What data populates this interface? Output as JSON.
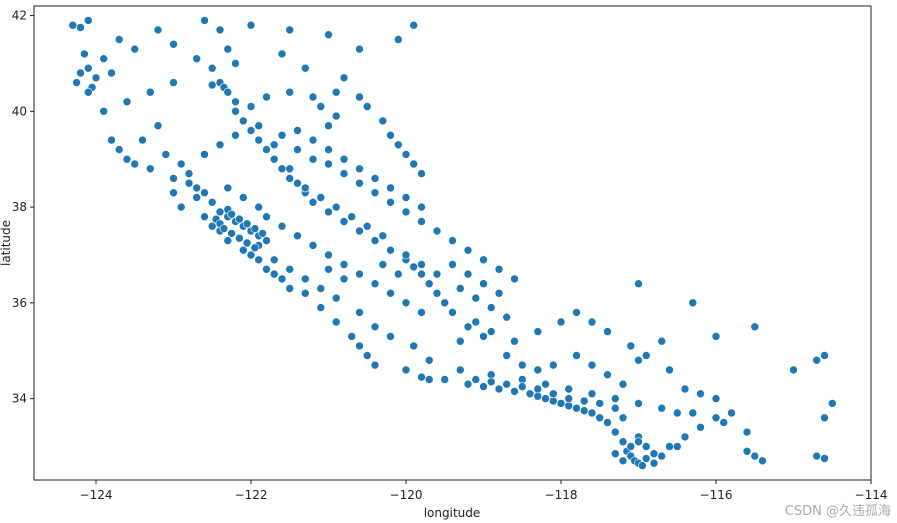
{
  "chart_data": {
    "type": "scatter",
    "title": "",
    "xlabel": "longitude",
    "ylabel": "latitude",
    "xlim": [
      -124.8,
      -114.0
    ],
    "ylim": [
      32.3,
      42.2
    ],
    "xticks": [
      -124,
      -122,
      -120,
      -118,
      -116,
      -114
    ],
    "yticks": [
      34,
      36,
      38,
      40,
      42
    ],
    "xtick_labels": [
      "−124",
      "−122",
      "−120",
      "−118",
      "−116",
      "−114"
    ],
    "ytick_labels": [
      "34",
      "36",
      "38",
      "40",
      "42"
    ],
    "grid": false,
    "legend": "none",
    "marker_color": "#1f77b4",
    "marker_edge": "#ffffff",
    "points": [
      [
        -124.3,
        41.8
      ],
      [
        -124.2,
        41.75
      ],
      [
        -124.1,
        41.9
      ],
      [
        -124.15,
        41.2
      ],
      [
        -124.2,
        40.8
      ],
      [
        -124.25,
        40.6
      ],
      [
        -124.1,
        40.9
      ],
      [
        -124.0,
        40.7
      ],
      [
        -124.05,
        40.5
      ],
      [
        -123.8,
        40.8
      ],
      [
        -124.1,
        40.4
      ],
      [
        -123.9,
        41.1
      ],
      [
        -123.7,
        41.5
      ],
      [
        -123.5,
        41.3
      ],
      [
        -123.2,
        41.7
      ],
      [
        -123.0,
        41.4
      ],
      [
        -122.6,
        41.9
      ],
      [
        -122.4,
        41.7
      ],
      [
        -122.3,
        41.3
      ],
      [
        -122.2,
        41.0
      ],
      [
        -122.4,
        40.6
      ],
      [
        -122.35,
        40.5
      ],
      [
        -122.3,
        40.4
      ],
      [
        -122.5,
        40.55
      ],
      [
        -122.2,
        40.2
      ],
      [
        -122.0,
        40.1
      ],
      [
        -121.8,
        40.3
      ],
      [
        -121.5,
        40.4
      ],
      [
        -121.2,
        40.3
      ],
      [
        -120.9,
        40.4
      ],
      [
        -120.6,
        40.3
      ],
      [
        -120.5,
        40.1
      ],
      [
        -120.3,
        39.8
      ],
      [
        -120.2,
        39.5
      ],
      [
        -120.1,
        39.3
      ],
      [
        -120.0,
        39.1
      ],
      [
        -119.9,
        38.9
      ],
      [
        -119.8,
        38.7
      ],
      [
        -119.9,
        41.8
      ],
      [
        -120.1,
        41.5
      ],
      [
        -120.6,
        41.3
      ],
      [
        -121.0,
        41.6
      ],
      [
        -121.5,
        41.7
      ],
      [
        -122.0,
        41.8
      ],
      [
        -121.6,
        41.2
      ],
      [
        -121.3,
        40.9
      ],
      [
        -120.8,
        40.7
      ],
      [
        -123.8,
        39.4
      ],
      [
        -123.7,
        39.2
      ],
      [
        -123.6,
        39.0
      ],
      [
        -123.5,
        38.9
      ],
      [
        -123.3,
        38.8
      ],
      [
        -123.0,
        38.6
      ],
      [
        -122.8,
        38.5
      ],
      [
        -122.7,
        38.4
      ],
      [
        -122.6,
        38.3
      ],
      [
        -122.5,
        38.1
      ],
      [
        -122.4,
        37.9
      ],
      [
        -122.3,
        37.8
      ],
      [
        -122.2,
        37.7
      ],
      [
        -122.1,
        37.6
      ],
      [
        -122.0,
        37.5
      ],
      [
        -121.9,
        37.4
      ],
      [
        -121.8,
        37.3
      ],
      [
        -121.9,
        37.2
      ],
      [
        -122.0,
        37.0
      ],
      [
        -121.9,
        36.9
      ],
      [
        -121.8,
        36.7
      ],
      [
        -121.7,
        36.6
      ],
      [
        -121.6,
        36.5
      ],
      [
        -121.5,
        36.3
      ],
      [
        -121.3,
        36.2
      ],
      [
        -121.1,
        35.9
      ],
      [
        -120.9,
        35.6
      ],
      [
        -120.7,
        35.3
      ],
      [
        -120.6,
        35.1
      ],
      [
        -120.5,
        34.9
      ],
      [
        -120.4,
        34.7
      ],
      [
        -120.0,
        34.6
      ],
      [
        -119.8,
        34.45
      ],
      [
        -119.7,
        34.4
      ],
      [
        -119.5,
        34.4
      ],
      [
        -119.2,
        34.3
      ],
      [
        -119.0,
        34.25
      ],
      [
        -118.8,
        34.2
      ],
      [
        -118.6,
        34.15
      ],
      [
        -118.4,
        34.1
      ],
      [
        -118.3,
        34.05
      ],
      [
        -118.2,
        34.0
      ],
      [
        -118.1,
        33.95
      ],
      [
        -118.0,
        33.9
      ],
      [
        -117.9,
        33.85
      ],
      [
        -117.8,
        33.8
      ],
      [
        -117.7,
        33.75
      ],
      [
        -117.6,
        33.7
      ],
      [
        -117.5,
        33.6
      ],
      [
        -117.4,
        33.5
      ],
      [
        -117.3,
        33.3
      ],
      [
        -117.2,
        33.1
      ],
      [
        -117.15,
        32.9
      ],
      [
        -117.1,
        32.8
      ],
      [
        -117.05,
        32.7
      ],
      [
        -117.0,
        32.65
      ],
      [
        -116.9,
        32.75
      ],
      [
        -116.8,
        32.85
      ],
      [
        -116.6,
        33.0
      ],
      [
        -116.4,
        33.2
      ],
      [
        -116.2,
        33.4
      ],
      [
        -116.0,
        33.6
      ],
      [
        -115.8,
        33.7
      ],
      [
        -115.6,
        32.9
      ],
      [
        -115.5,
        32.8
      ],
      [
        -115.4,
        32.7
      ],
      [
        -114.7,
        32.8
      ],
      [
        -114.6,
        32.75
      ],
      [
        -114.6,
        33.6
      ],
      [
        -114.6,
        34.9
      ],
      [
        -114.7,
        34.8
      ],
      [
        -114.5,
        33.9
      ],
      [
        -115.0,
        34.6
      ],
      [
        -115.5,
        35.5
      ],
      [
        -116.0,
        35.3
      ],
      [
        -116.3,
        36.0
      ],
      [
        -117.0,
        36.4
      ],
      [
        -117.6,
        35.6
      ],
      [
        -118.0,
        35.6
      ],
      [
        -118.3,
        35.4
      ],
      [
        -118.6,
        35.2
      ],
      [
        -118.9,
        35.4
      ],
      [
        -119.0,
        35.3
      ],
      [
        -119.2,
        35.5
      ],
      [
        -119.4,
        35.8
      ],
      [
        -119.5,
        36.0
      ],
      [
        -119.6,
        36.2
      ],
      [
        -119.7,
        36.4
      ],
      [
        -119.8,
        36.6
      ],
      [
        -119.9,
        36.75
      ],
      [
        -120.0,
        36.9
      ],
      [
        -120.2,
        37.1
      ],
      [
        -120.4,
        37.3
      ],
      [
        -120.6,
        37.5
      ],
      [
        -120.8,
        37.7
      ],
      [
        -121.0,
        37.9
      ],
      [
        -121.2,
        38.1
      ],
      [
        -121.3,
        38.3
      ],
      [
        -121.4,
        38.5
      ],
      [
        -121.5,
        38.6
      ],
      [
        -121.6,
        38.8
      ],
      [
        -121.7,
        39.0
      ],
      [
        -121.8,
        39.2
      ],
      [
        -121.9,
        39.4
      ],
      [
        -122.0,
        39.6
      ],
      [
        -122.1,
        39.8
      ],
      [
        -122.2,
        40.0
      ],
      [
        -121.4,
        39.2
      ],
      [
        -121.2,
        39.0
      ],
      [
        -121.0,
        38.9
      ],
      [
        -120.8,
        38.7
      ],
      [
        -120.6,
        38.5
      ],
      [
        -120.4,
        38.3
      ],
      [
        -120.2,
        38.1
      ],
      [
        -120.0,
        37.9
      ],
      [
        -119.8,
        37.7
      ],
      [
        -119.6,
        37.5
      ],
      [
        -119.4,
        37.3
      ],
      [
        -119.2,
        37.1
      ],
      [
        -119.0,
        36.9
      ],
      [
        -118.8,
        36.7
      ],
      [
        -118.6,
        36.5
      ],
      [
        -119.3,
        36.3
      ],
      [
        -119.1,
        36.1
      ],
      [
        -118.9,
        35.9
      ],
      [
        -119.6,
        36.6
      ],
      [
        -119.8,
        36.8
      ],
      [
        -120.0,
        37.0
      ],
      [
        -120.3,
        37.4
      ],
      [
        -120.5,
        37.6
      ],
      [
        -120.7,
        37.8
      ],
      [
        -120.9,
        38.0
      ],
      [
        -121.1,
        38.2
      ],
      [
        -121.3,
        38.4
      ],
      [
        -121.5,
        38.8
      ],
      [
        -121.7,
        39.3
      ],
      [
        -121.9,
        39.7
      ],
      [
        -122.3,
        38.4
      ],
      [
        -122.1,
        38.2
      ],
      [
        -121.9,
        38.0
      ],
      [
        -122.6,
        37.8
      ],
      [
        -122.5,
        37.6
      ],
      [
        -122.4,
        37.5
      ],
      [
        -122.3,
        37.3
      ],
      [
        -122.1,
        37.1
      ],
      [
        -121.7,
        36.9
      ],
      [
        -121.5,
        36.7
      ],
      [
        -121.3,
        36.5
      ],
      [
        -121.1,
        36.3
      ],
      [
        -120.9,
        36.1
      ],
      [
        -120.6,
        35.8
      ],
      [
        -120.4,
        35.5
      ],
      [
        -120.2,
        35.3
      ],
      [
        -119.9,
        35.1
      ],
      [
        -119.7,
        34.8
      ],
      [
        -119.3,
        34.6
      ],
      [
        -118.9,
        34.5
      ],
      [
        -118.5,
        34.4
      ],
      [
        -118.2,
        34.3
      ],
      [
        -117.9,
        34.2
      ],
      [
        -117.6,
        34.1
      ],
      [
        -117.3,
        34.0
      ],
      [
        -117.0,
        33.9
      ],
      [
        -116.7,
        33.8
      ],
      [
        -116.5,
        33.7
      ],
      [
        -116.3,
        33.7
      ],
      [
        -117.2,
        34.3
      ],
      [
        -117.4,
        34.5
      ],
      [
        -117.6,
        34.7
      ],
      [
        -117.8,
        34.9
      ],
      [
        -118.1,
        34.7
      ],
      [
        -118.3,
        34.6
      ],
      [
        -118.5,
        34.7
      ],
      [
        -118.7,
        34.9
      ],
      [
        -117.0,
        34.8
      ],
      [
        -116.9,
        34.9
      ],
      [
        -116.6,
        34.6
      ],
      [
        -116.4,
        34.2
      ],
      [
        -116.2,
        34.1
      ],
      [
        -116.0,
        34.0
      ],
      [
        -115.9,
        33.5
      ],
      [
        -115.6,
        33.3
      ],
      [
        -116.5,
        33.0
      ],
      [
        -116.7,
        32.8
      ],
      [
        -116.9,
        33.0
      ],
      [
        -117.0,
        33.2
      ],
      [
        -117.2,
        33.6
      ],
      [
        -117.3,
        33.8
      ],
      [
        -117.5,
        33.9
      ],
      [
        -117.7,
        33.95
      ],
      [
        -117.9,
        34.0
      ],
      [
        -118.1,
        34.1
      ],
      [
        -118.3,
        34.2
      ],
      [
        -118.5,
        34.25
      ],
      [
        -118.7,
        34.3
      ],
      [
        -118.9,
        34.35
      ],
      [
        -119.1,
        34.4
      ],
      [
        -117.1,
        33.0
      ],
      [
        -117.0,
        33.1
      ],
      [
        -116.95,
        32.6
      ],
      [
        -117.2,
        32.7
      ],
      [
        -117.3,
        32.85
      ],
      [
        -116.8,
        32.65
      ],
      [
        -123.2,
        39.7
      ],
      [
        -123.4,
        39.4
      ],
      [
        -123.1,
        39.1
      ],
      [
        -122.9,
        38.9
      ],
      [
        -122.8,
        38.7
      ],
      [
        -122.7,
        38.2
      ],
      [
        -122.9,
        38.0
      ],
      [
        -123.0,
        38.3
      ],
      [
        -122.6,
        39.1
      ],
      [
        -122.4,
        39.3
      ],
      [
        -122.2,
        39.5
      ],
      [
        -121.6,
        39.5
      ],
      [
        -121.4,
        39.6
      ],
      [
        -121.2,
        39.4
      ],
      [
        -121.0,
        39.2
      ],
      [
        -120.8,
        39.0
      ],
      [
        -120.6,
        38.8
      ],
      [
        -120.4,
        38.6
      ],
      [
        -120.2,
        38.4
      ],
      [
        -120.0,
        38.2
      ],
      [
        -119.8,
        38.0
      ],
      [
        -121.0,
        39.7
      ],
      [
        -120.9,
        39.9
      ],
      [
        -121.1,
        40.1
      ],
      [
        -122.5,
        40.9
      ],
      [
        -122.7,
        41.1
      ],
      [
        -123.0,
        40.6
      ],
      [
        -123.3,
        40.4
      ],
      [
        -123.6,
        40.2
      ],
      [
        -123.9,
        40.0
      ],
      [
        -121.8,
        37.8
      ],
      [
        -121.6,
        37.6
      ],
      [
        -121.4,
        37.4
      ],
      [
        -121.2,
        37.2
      ],
      [
        -121.0,
        37.0
      ],
      [
        -120.8,
        36.8
      ],
      [
        -120.6,
        36.6
      ],
      [
        -120.4,
        36.4
      ],
      [
        -120.2,
        36.2
      ],
      [
        -120.0,
        36.0
      ],
      [
        -119.8,
        35.8
      ],
      [
        -121.0,
        36.7
      ],
      [
        -120.8,
        36.5
      ],
      [
        -120.3,
        36.8
      ],
      [
        -120.1,
        36.6
      ],
      [
        -119.4,
        36.8
      ],
      [
        -119.2,
        36.6
      ],
      [
        -119.0,
        36.4
      ],
      [
        -118.8,
        36.2
      ],
      [
        -119.1,
        35.6
      ],
      [
        -119.3,
        35.2
      ],
      [
        -118.7,
        35.7
      ],
      [
        -117.8,
        35.8
      ],
      [
        -117.4,
        35.4
      ],
      [
        -117.1,
        35.1
      ],
      [
        -116.7,
        35.2
      ],
      [
        -122.3,
        37.95
      ],
      [
        -122.25,
        37.85
      ],
      [
        -122.15,
        37.75
      ],
      [
        -122.05,
        37.65
      ],
      [
        -121.95,
        37.55
      ],
      [
        -121.85,
        37.45
      ],
      [
        -122.45,
        37.75
      ],
      [
        -122.4,
        37.65
      ],
      [
        -122.35,
        37.55
      ],
      [
        -122.25,
        37.45
      ],
      [
        -122.15,
        37.35
      ],
      [
        -122.05,
        37.25
      ],
      [
        -121.95,
        37.15
      ]
    ]
  },
  "watermark": "CSDN @久违孤海"
}
